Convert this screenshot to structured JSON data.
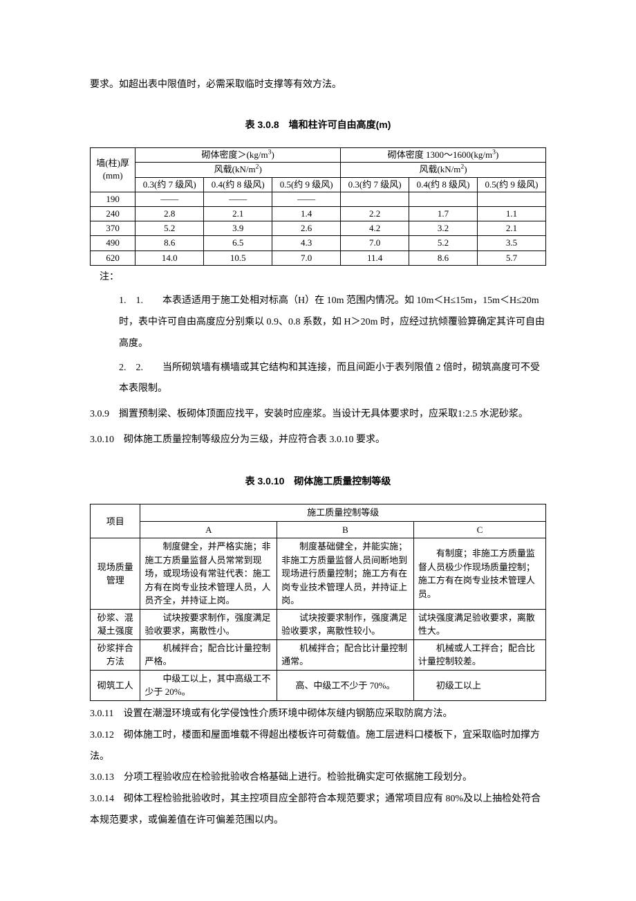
{
  "intro": "要求。如超出表中限值时，必需采取临时支撑等有效方法。",
  "table1": {
    "title": "表 3.0.8　墙和柱许可自由高度(m)",
    "col_header": "墙(柱)厚\n(mm)",
    "group1_top": "砌体密度＞(kg/m³)",
    "group1_sub": "风载(kN/m²)",
    "group2_top": "砌体密度 1300～1600(kg/m³)",
    "group2_sub": "风载(kN/m²)",
    "cols": [
      "0.3(约 7 级风)",
      "0.4(约 8 级风)",
      "0.5(约 9 级风)",
      "0.3(约 7 级风)",
      "0.4(约 8 级风)",
      "0.5(约 9 级风)"
    ],
    "rows": [
      [
        "190",
        "——",
        "——",
        "——",
        "",
        "",
        ""
      ],
      [
        "240",
        "2.8",
        "2.1",
        "1.4",
        "2.2",
        "1.7",
        "1.1"
      ],
      [
        "370",
        "5.2",
        "3.9",
        "2.6",
        "4.2",
        "3.2",
        "2.1"
      ],
      [
        "490",
        "8.6",
        "6.5",
        "4.3",
        "7.0",
        "5.2",
        "3.5"
      ],
      [
        "620",
        "14.0",
        "10.5",
        "7.0",
        "11.4",
        "8.6",
        "5.7"
      ]
    ]
  },
  "note_label": "注：",
  "notes": [
    "1.　1.　　本表适适用于施工处相对标高（H）在 10m 范围内情况。如 10m＜H≤15m，15m＜H≤20m 时，表中许可自由高度应分别乘以 0.9、0.8 系数，如 H＞20m 时，应经过抗倾覆验算确定其许可自由高度。",
    "2.　2.　　当所砌筑墙有横墙或其它结构和其连接，而且间距小于表列限值 2 倍时，砌筑高度可不受本表限制。"
  ],
  "p309": "3.0.9　搁置预制梁、板砌体顶面应找平，安装时应座浆。当设计无具体要求时，应采取1:2.5 水泥砂浆。",
  "p310": "3.0.10　砌体施工质量控制等级应分为三级，并应符合表 3.0.10 要求。",
  "table2": {
    "title": "表 3.0.10　砌体施工质量控制等级",
    "h_project": "项目",
    "h_group": "施工质量控制等级",
    "h_a": "A",
    "h_b": "B",
    "h_c": "C",
    "rows": [
      {
        "p": "现场质量管理",
        "a": "　　制度健全，并严格实施；非施工方质量监督人员常常到现场，或现场设有常驻代表：施工方有在岗专业技术管理人员，人员齐全，并持证上岗。",
        "b": "　　制度基础健全，并能实施；非施工方质量监督人员间断地到现场进行质量控制；施工方有在岗专业技术管理人员，并持证上岗。",
        "c": "　　有制度；非施工方质量监督人员极少作现场质量控制；施工方有在岗专业技术管理人员。"
      },
      {
        "p": "砂浆、混凝土强度",
        "a": "　　试块按要求制作，强度满足验收要求，离散性小。",
        "b": "　　试块按要求制作，强度满足验收要求，离散性较小。",
        "c": "试块强度满足验收要求，离散性大。"
      },
      {
        "p": "砂浆拌合方法",
        "a": "　　机械拌合；配合比计量控制严格。",
        "b": "　　机械拌合；配合比计量控制通常。",
        "c": "　　机械或人工拌合；配合比计量控制较差。"
      },
      {
        "p": "砌筑工人",
        "a": "　　中级工以上，其中高级工不少于 20%。",
        "b": "高、中级工不少于 70%。",
        "c": "　　初级工以上"
      }
    ]
  },
  "p311": "3.0.11　设置在潮湿环境或有化学侵蚀性介质环境中砌体灰缝内钢筋应采取防腐方法。",
  "p312": "3.0.12　砌体施工时，楼面和屋面堆载不得超出楼板许可荷载值。施工层进料口楼板下，宜采取临时加撑方法。",
  "p313": "3.0.13　分项工程验收应在检验批验收合格基础上进行。检验批确实定可依据施工段划分。",
  "p314": "3.0.14　砌体工程检验批验收时，其主控项目应全部符合本规范要求；通常项目应有 80%及以上抽检处符合本规范要求，或偏差值在许可偏差范围以内。"
}
